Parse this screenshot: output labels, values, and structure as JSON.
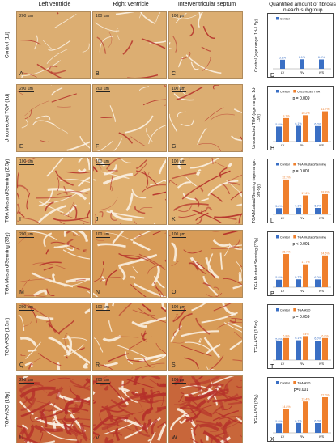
{
  "column_headers": [
    "Left ventricle",
    "Right ventricle",
    "Interventricular septum"
  ],
  "panel_header": "Quantified amount of fibrosis in each subgroup",
  "rows": [
    {
      "label": "Control (1d)",
      "scale_bars": [
        "200 µm",
        "100 µm",
        "100 µm"
      ],
      "letters": [
        "A",
        "B",
        "C"
      ],
      "fibrosis": "low"
    },
    {
      "label": "Uncorrected TGA (1d)",
      "scale_bars": [
        "200 µm",
        "200 µm",
        "100 µm"
      ],
      "letters": [
        "E",
        "F",
        "G"
      ],
      "fibrosis": "low"
    },
    {
      "label": "TGA Mustard/Senning (2.5y)",
      "scale_bars": [
        "100 µm",
        "100 µm",
        "100 µm"
      ],
      "letters": [
        "I",
        "J",
        "K"
      ],
      "fibrosis": "high"
    },
    {
      "label": "TGA Mustard/Senning (33y)",
      "scale_bars": [
        "200 µm",
        "100 µm",
        "100 µm"
      ],
      "letters": [
        "M",
        "N",
        "O"
      ],
      "fibrosis": "medium"
    },
    {
      "label": "TGA-ASO (1.5m)",
      "scale_bars": [
        "200 µm",
        "100 µm",
        "100 µm"
      ],
      "letters": [
        "Q",
        "R",
        "S"
      ],
      "fibrosis": "medium"
    },
    {
      "label": "TGA-ASO (19y)",
      "scale_bars": [
        "200 µm",
        "200 µm",
        "100 µm"
      ],
      "letters": [
        "U",
        "V",
        "W"
      ],
      "fibrosis": "very-high"
    }
  ],
  "colors": {
    "control_bar": "#3a6fc4",
    "patient_bar": "#ef7f2c",
    "tissue_base": "#d8a15f",
    "fibrosis": "#b5302a"
  },
  "chart_data": [
    {
      "type": "bar",
      "ylabel": "Control (age range: 1d-1.5y)",
      "panel_letter": "D",
      "categories": [
        "LV",
        "RV",
        "IVS"
      ],
      "series": [
        {
          "name": "Control",
          "values": [
            5.8,
            6.1,
            6.0
          ]
        }
      ],
      "value_labels": [
        [
          "5.8%",
          "6.1%",
          "6.0%"
        ]
      ],
      "p_value": "",
      "ylim": [
        0,
        25
      ]
    },
    {
      "type": "bar",
      "ylabel": "Uncorrected TGA (age range: 1d-19y)",
      "panel_letter": "H",
      "categories": [
        "LV",
        "RV",
        "IVS"
      ],
      "series": [
        {
          "name": "Control",
          "values": [
            5.8,
            6.1,
            6.0
          ]
        },
        {
          "name": "Uncorrected TGA",
          "values": [
            9.1,
            10.2,
            11.7
          ]
        }
      ],
      "value_labels": [
        [
          "5.8%",
          "6.1%",
          "6.0%"
        ],
        [
          "9.1%",
          "10.2%",
          "11.7%"
        ]
      ],
      "p_value": "p = 0.009",
      "ylim": [
        0,
        15
      ]
    },
    {
      "type": "bar",
      "ylabel": "TGA Mustard/Senning (age range: 6m-5y)",
      "panel_letter": "L",
      "categories": [
        "LV",
        "RV",
        "IVS"
      ],
      "series": [
        {
          "name": "Control",
          "values": [
            5.8,
            6.1,
            6.0
          ]
        },
        {
          "name": "TGA Mustard/Senning",
          "values": [
            32.3,
            17.6,
            18.8
          ]
        }
      ],
      "value_labels": [
        [
          "5.8%",
          "6.1%",
          "6.0%"
        ],
        [
          "32.3%",
          "17.6%",
          "18.8%"
        ]
      ],
      "p_value": "p = 0.001",
      "ylim": [
        0,
        36
      ]
    },
    {
      "type": "bar",
      "ylabel": "TGA Mustard Senning (33y)",
      "panel_letter": "P",
      "categories": [
        "LV",
        "RV",
        "IVS"
      ],
      "series": [
        {
          "name": "Control",
          "values": [
            5.8,
            6.1,
            6.0
          ]
        },
        {
          "name": "TGA Mustard/Senning",
          "values": [
            25.6,
            17.7,
            24.5
          ]
        }
      ],
      "value_labels": [
        [
          "5.8%",
          "6.1%",
          "6.0%"
        ],
        [
          "25.6%",
          "17.7%",
          "24.5%"
        ]
      ],
      "p_value": "p < 0.001",
      "ylim": [
        0,
        30
      ]
    },
    {
      "type": "bar",
      "ylabel": "TGA-ASO (1.5m)",
      "panel_letter": "T",
      "categories": [
        "LV",
        "RV",
        "IVS"
      ],
      "series": [
        {
          "name": "Control",
          "values": [
            5.8,
            6.1,
            6.0
          ]
        },
        {
          "name": "TGA-ASO",
          "values": [
            6.8,
            7.4,
            6.8
          ]
        }
      ],
      "value_labels": [
        [
          "5.8%",
          "6.1%",
          "6.0%"
        ],
        [
          "6.8%",
          "7.4%",
          "6.8%"
        ]
      ],
      "p_value": "p = 0.059",
      "ylim": [
        0,
        12
      ]
    },
    {
      "type": "bar",
      "ylabel": "TGA-ASO (19y)",
      "panel_letter": "X",
      "categories": [
        "LV",
        "RV",
        "IVS"
      ],
      "series": [
        {
          "name": "Control",
          "values": [
            5.8,
            6.1,
            6.0
          ]
        },
        {
          "name": "TGA-ASO",
          "values": [
            14.8,
            19.4,
            22.0
          ]
        }
      ],
      "value_labels": [
        [
          "5.8%",
          "6.1%",
          "6.0%"
        ],
        [
          "14.8%",
          "19.4%",
          "22.0%"
        ]
      ],
      "p_value": "p=0.001",
      "ylim": [
        0,
        24
      ]
    }
  ]
}
